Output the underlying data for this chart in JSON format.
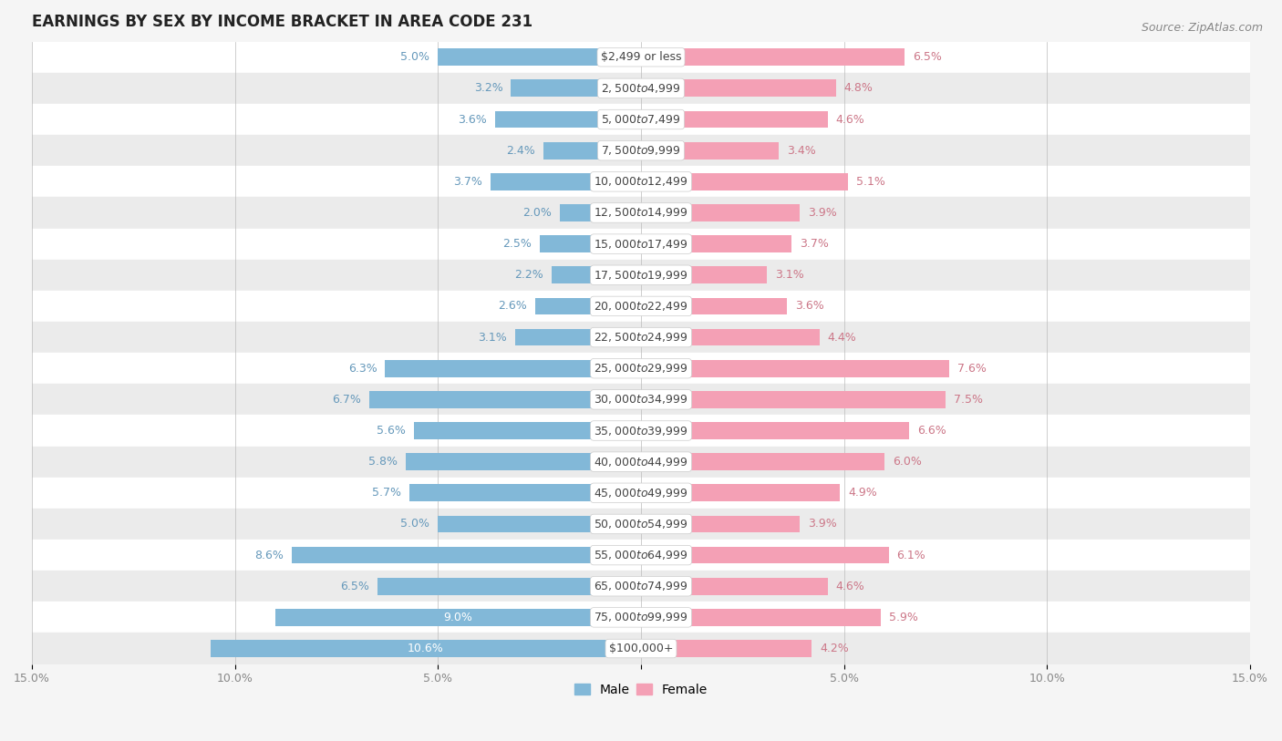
{
  "title": "EARNINGS BY SEX BY INCOME BRACKET IN AREA CODE 231",
  "source": "Source: ZipAtlas.com",
  "categories": [
    "$2,499 or less",
    "$2,500 to $4,999",
    "$5,000 to $7,499",
    "$7,500 to $9,999",
    "$10,000 to $12,499",
    "$12,500 to $14,999",
    "$15,000 to $17,499",
    "$17,500 to $19,999",
    "$20,000 to $22,499",
    "$22,500 to $24,999",
    "$25,000 to $29,999",
    "$30,000 to $34,999",
    "$35,000 to $39,999",
    "$40,000 to $44,999",
    "$45,000 to $49,999",
    "$50,000 to $54,999",
    "$55,000 to $64,999",
    "$65,000 to $74,999",
    "$75,000 to $99,999",
    "$100,000+"
  ],
  "male": [
    5.0,
    3.2,
    3.6,
    2.4,
    3.7,
    2.0,
    2.5,
    2.2,
    2.6,
    3.1,
    6.3,
    6.7,
    5.6,
    5.8,
    5.7,
    5.0,
    8.6,
    6.5,
    9.0,
    10.6
  ],
  "female": [
    6.5,
    4.8,
    4.6,
    3.4,
    5.1,
    3.9,
    3.7,
    3.1,
    3.6,
    4.4,
    7.6,
    7.5,
    6.6,
    6.0,
    4.9,
    3.9,
    6.1,
    4.6,
    5.9,
    4.2
  ],
  "male_color": "#82b8d8",
  "female_color": "#f4a0b5",
  "male_label_color": "#6699bb",
  "female_label_color": "#cc7788",
  "background_color": "#f5f5f5",
  "row_color_odd": "#ffffff",
  "row_color_even": "#ebebeb",
  "xlim": 15.0,
  "legend_male": "Male",
  "legend_female": "Female",
  "title_fontsize": 12,
  "source_fontsize": 9,
  "label_fontsize": 9,
  "tick_fontsize": 9,
  "bar_height": 0.55
}
